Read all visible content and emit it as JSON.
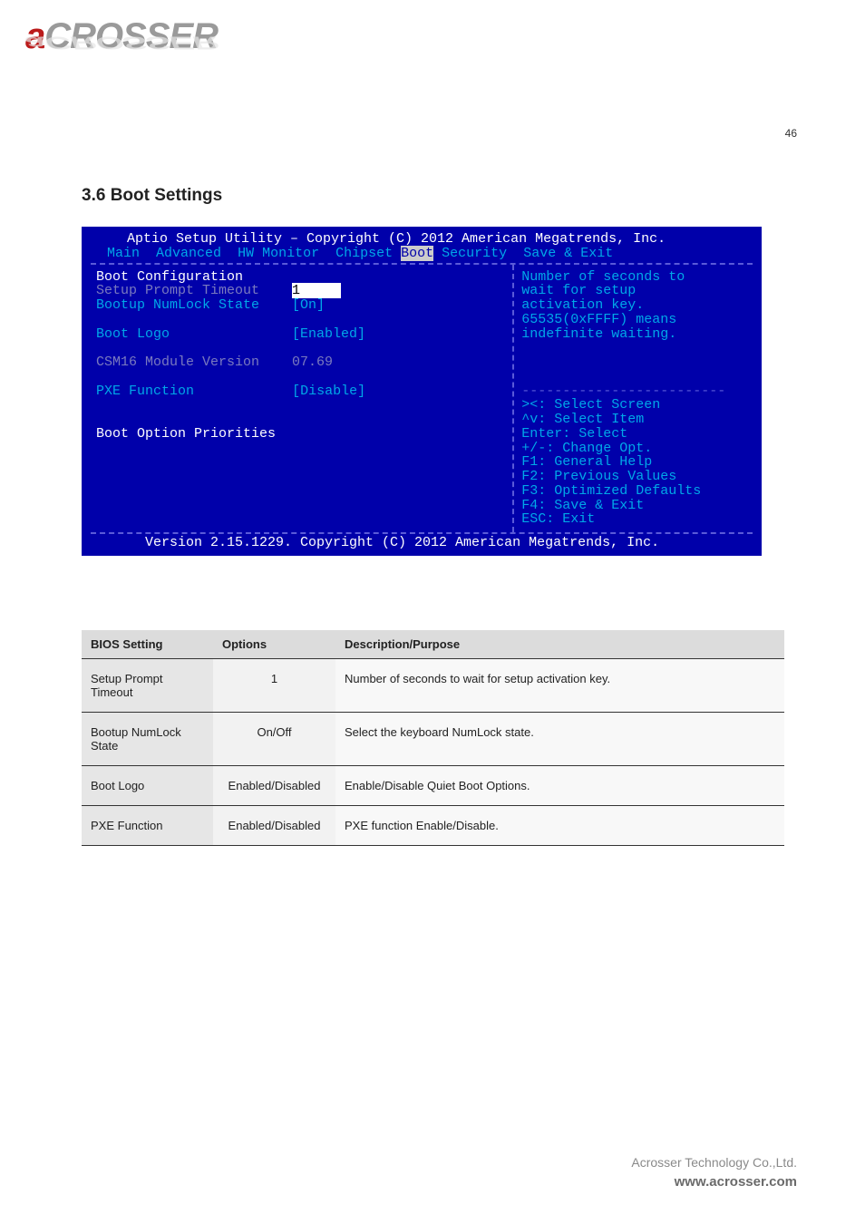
{
  "logo": {
    "first": "a",
    "rest": "CROSSER"
  },
  "page_number": "46",
  "section_title": "3.6 Boot Settings",
  "bios": {
    "header": "Aptio Setup Utility – Copyright (C) 2012 American Megatrends, Inc.",
    "tabs": {
      "t1": "Main",
      "t2": "Advanced",
      "t3": "HW Monitor",
      "t4": "Chipset",
      "t5": "Boot",
      "t6": "Security",
      "t7": "Save & Exit"
    },
    "left": {
      "l1": "Boot Configuration",
      "l2": "Setup Prompt Timeout",
      "v2_sel": "1     ",
      "l3": "Bootup NumLock State",
      "v3": "[On]",
      "l4": "Boot Logo",
      "v4": "[Enabled]",
      "l5": "CSM16 Module Version",
      "v5": "07.69",
      "l6": "PXE Function",
      "v6": "[Disable]",
      "l7": "Boot Option Priorities"
    },
    "right_desc": {
      "d1": "Number of seconds to",
      "d2": "wait for setup",
      "d3": "activation key.",
      "d4": "65535(0xFFFF) means",
      "d5": "indefinite waiting."
    },
    "right_help": {
      "h1": "><: Select Screen",
      "h2": "^v: Select Item",
      "h3": "Enter: Select",
      "h4": "+/-: Change Opt.",
      "h5": "F1: General Help",
      "h6": "F2: Previous Values",
      "h7": "F3: Optimized Defaults",
      "h8": "F4: Save & Exit",
      "h9": "ESC: Exit"
    },
    "footer": "Version 2.15.1229. Copyright (C) 2012 American Megatrends, Inc."
  },
  "table": {
    "headers": {
      "h1": "BIOS Setting",
      "h2": "Options",
      "h3": "Description/Purpose"
    },
    "rows": [
      {
        "c1": "Setup Prompt Timeout",
        "c2": "1",
        "c3": "Number of seconds to wait for setup activation key."
      },
      {
        "c1": "Bootup NumLock State",
        "c2": "On/Off",
        "c3": "Select the keyboard NumLock state."
      },
      {
        "c1": "Boot Logo",
        "c2": "Enabled/Disabled",
        "c3": "Enable/Disable Quiet Boot Options."
      },
      {
        "c1": "PXE Function",
        "c2": "Enabled/Disabled",
        "c3": "PXE function Enable/Disable."
      }
    ]
  },
  "footer": {
    "company": "Acrosser Technology Co.,Ltd.",
    "url": "www.acrosser.com"
  }
}
